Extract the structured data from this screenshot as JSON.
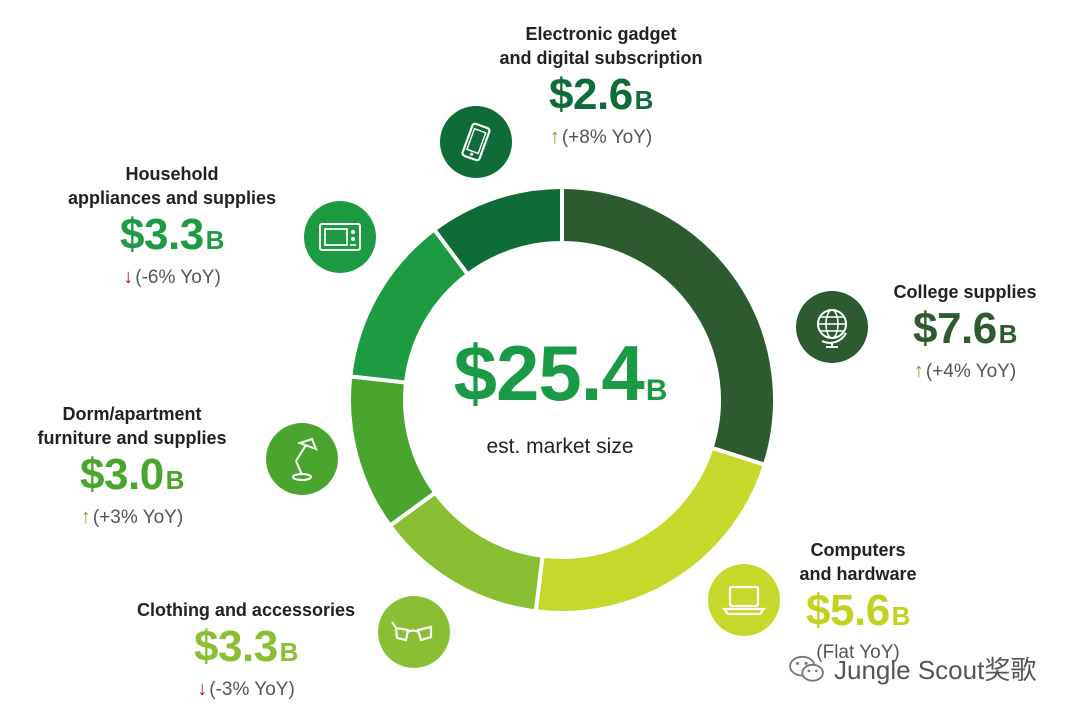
{
  "chart_data": {
    "type": "donut",
    "total": {
      "value": "$25.4",
      "unit": "B",
      "label": "est. market size"
    },
    "unit": "B",
    "segments": [
      {
        "name": [
          "College supplies"
        ],
        "value": 7.6,
        "display": "$7.6",
        "yoy": "(+4% YoY)",
        "trend": "up",
        "color": "#2e5a30",
        "icon": "globe-icon"
      },
      {
        "name": [
          "Computers",
          "and hardware"
        ],
        "value": 5.6,
        "display": "$5.6",
        "yoy": "(Flat YoY)",
        "trend": "flat",
        "color": "#c6d82c",
        "icon": "laptop-icon"
      },
      {
        "name": [
          "Clothing and accessories"
        ],
        "value": 3.3,
        "display": "$3.3",
        "yoy": "(-3% YoY)",
        "trend": "down",
        "color": "#8bbf33",
        "icon": "glasses-icon"
      },
      {
        "name": [
          "Dorm/apartment",
          "furniture and supplies"
        ],
        "value": 3.0,
        "display": "$3.0",
        "yoy": "(+3% YoY)",
        "trend": "up",
        "color": "#4aa52e",
        "icon": "desk-lamp-icon"
      },
      {
        "name": [
          "Household",
          "appliances and supplies"
        ],
        "value": 3.3,
        "display": "$3.3",
        "yoy": "(-6% YoY)",
        "trend": "down",
        "color": "#1c9b42",
        "icon": "microwave-icon"
      },
      {
        "name": [
          "Electronic gadget",
          "and digital subscription"
        ],
        "value": 2.6,
        "display": "$2.6",
        "yoy": "(+8% YoY)",
        "trend": "up",
        "color": "#0f6b38",
        "icon": "smartphone-icon"
      }
    ]
  },
  "colors": {
    "up_arrow": "#6aa82a",
    "down_arrow": "#b5121b",
    "total_text": "#1a9a47"
  },
  "watermark": {
    "text": "Jungle Scout奖歌",
    "icon": "wechat-icon"
  }
}
